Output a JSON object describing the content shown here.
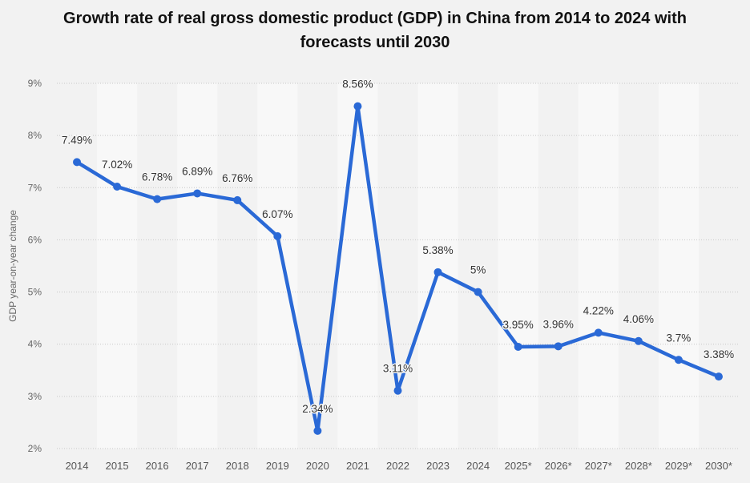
{
  "chart_data": {
    "type": "line",
    "title": "Growth rate of real gross domestic product (GDP) in China from 2014 to 2024 with forecasts until 2030",
    "title_lines": [
      "Growth rate of real gross domestic product (GDP) in China from 2014 to 2024 with",
      "forecasts until 2030"
    ],
    "xlabel": "",
    "ylabel": "GDP year-on-year change",
    "categories": [
      "2014",
      "2015",
      "2016",
      "2017",
      "2018",
      "2019",
      "2020",
      "2021",
      "2022",
      "2023",
      "2024",
      "2025*",
      "2026*",
      "2027*",
      "2028*",
      "2029*",
      "2030*"
    ],
    "series": [
      {
        "name": "GDP growth rate",
        "color": "#2a69d6",
        "values": [
          7.49,
          7.02,
          6.78,
          6.89,
          6.76,
          6.07,
          2.34,
          8.56,
          3.11,
          5.38,
          5.0,
          3.95,
          3.96,
          4.22,
          4.06,
          3.7,
          3.38
        ],
        "labels": [
          "7.49%",
          "7.02%",
          "6.78%",
          "6.89%",
          "6.76%",
          "6.07%",
          "2.34%",
          "8.56%",
          "3.11%",
          "5.38%",
          "5%",
          "3.95%",
          "3.96%",
          "4.22%",
          "4.06%",
          "3.7%",
          "3.38%"
        ]
      }
    ],
    "ylim": [
      2,
      9
    ],
    "yticks": [
      2,
      3,
      4,
      5,
      6,
      7,
      8,
      9
    ],
    "ytick_labels": [
      "2%",
      "3%",
      "4%",
      "5%",
      "6%",
      "7%",
      "8%",
      "9%"
    ],
    "grid": true,
    "legend": "none"
  }
}
